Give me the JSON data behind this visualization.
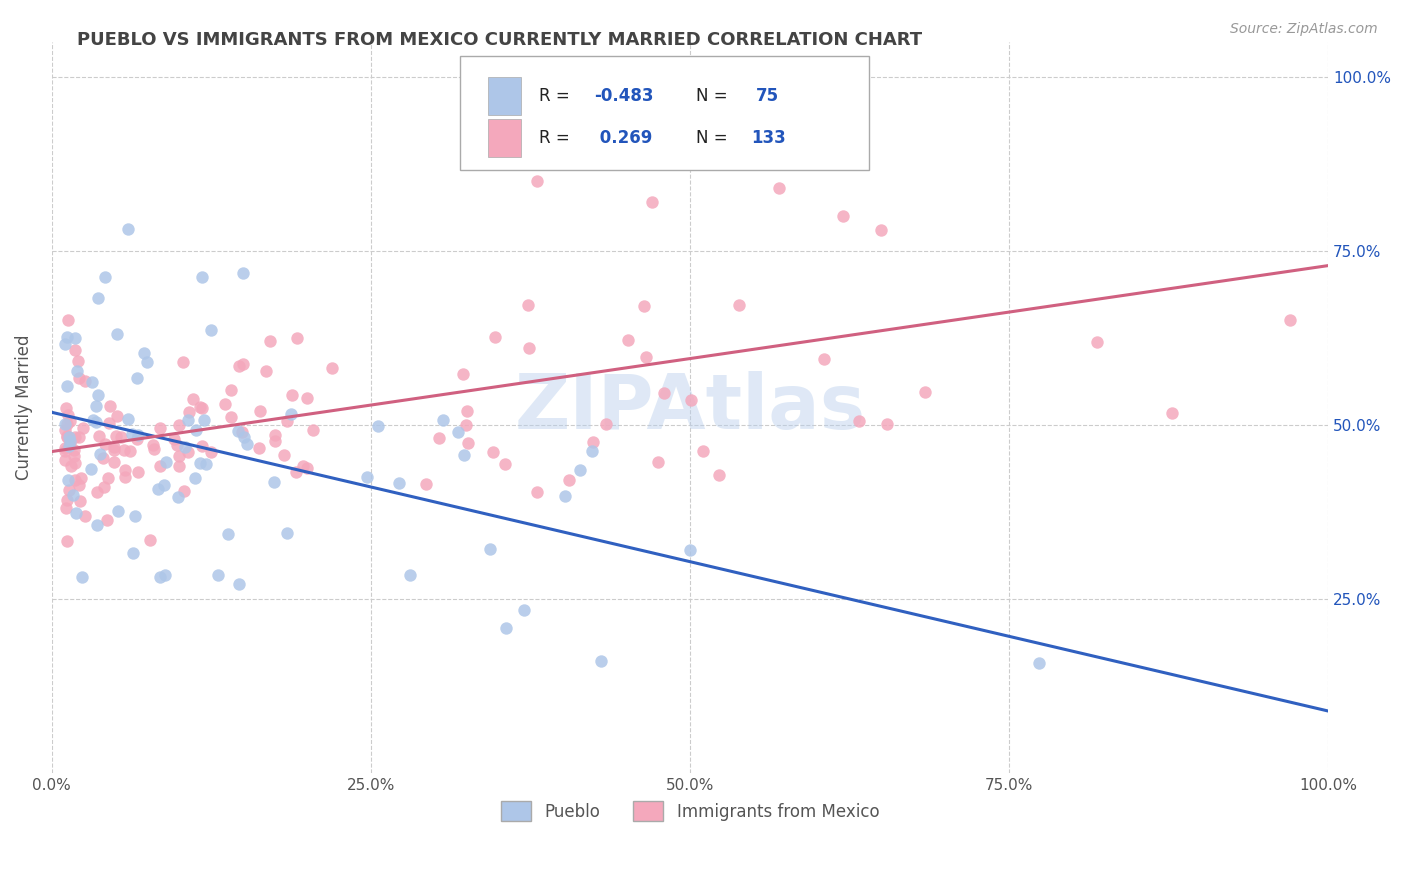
{
  "title": "PUEBLO VS IMMIGRANTS FROM MEXICO CURRENTLY MARRIED CORRELATION CHART",
  "source": "Source: ZipAtlas.com",
  "ylabel": "Currently Married",
  "xlim": [
    0.0,
    1.0
  ],
  "ylim": [
    0.0,
    1.05
  ],
  "ytick_values": [
    0.25,
    0.5,
    0.75,
    1.0
  ],
  "xtick_values": [
    0.0,
    0.25,
    0.5,
    0.75,
    1.0
  ],
  "pueblo_color": "#aec6e8",
  "mexico_color": "#f4a8bc",
  "pueblo_line_color": "#3060c0",
  "mexico_line_color": "#d06080",
  "pueblo_R": -0.483,
  "pueblo_N": 75,
  "mexico_R": 0.269,
  "mexico_N": 133,
  "watermark": "ZIPAtlas",
  "legend_label_pueblo": "Pueblo",
  "legend_label_mexico": "Immigrants from Mexico",
  "background_color": "#ffffff",
  "grid_color": "#cccccc",
  "title_color": "#444444",
  "legend_text_color": "#2255bb",
  "axis_label_color": "#555555"
}
